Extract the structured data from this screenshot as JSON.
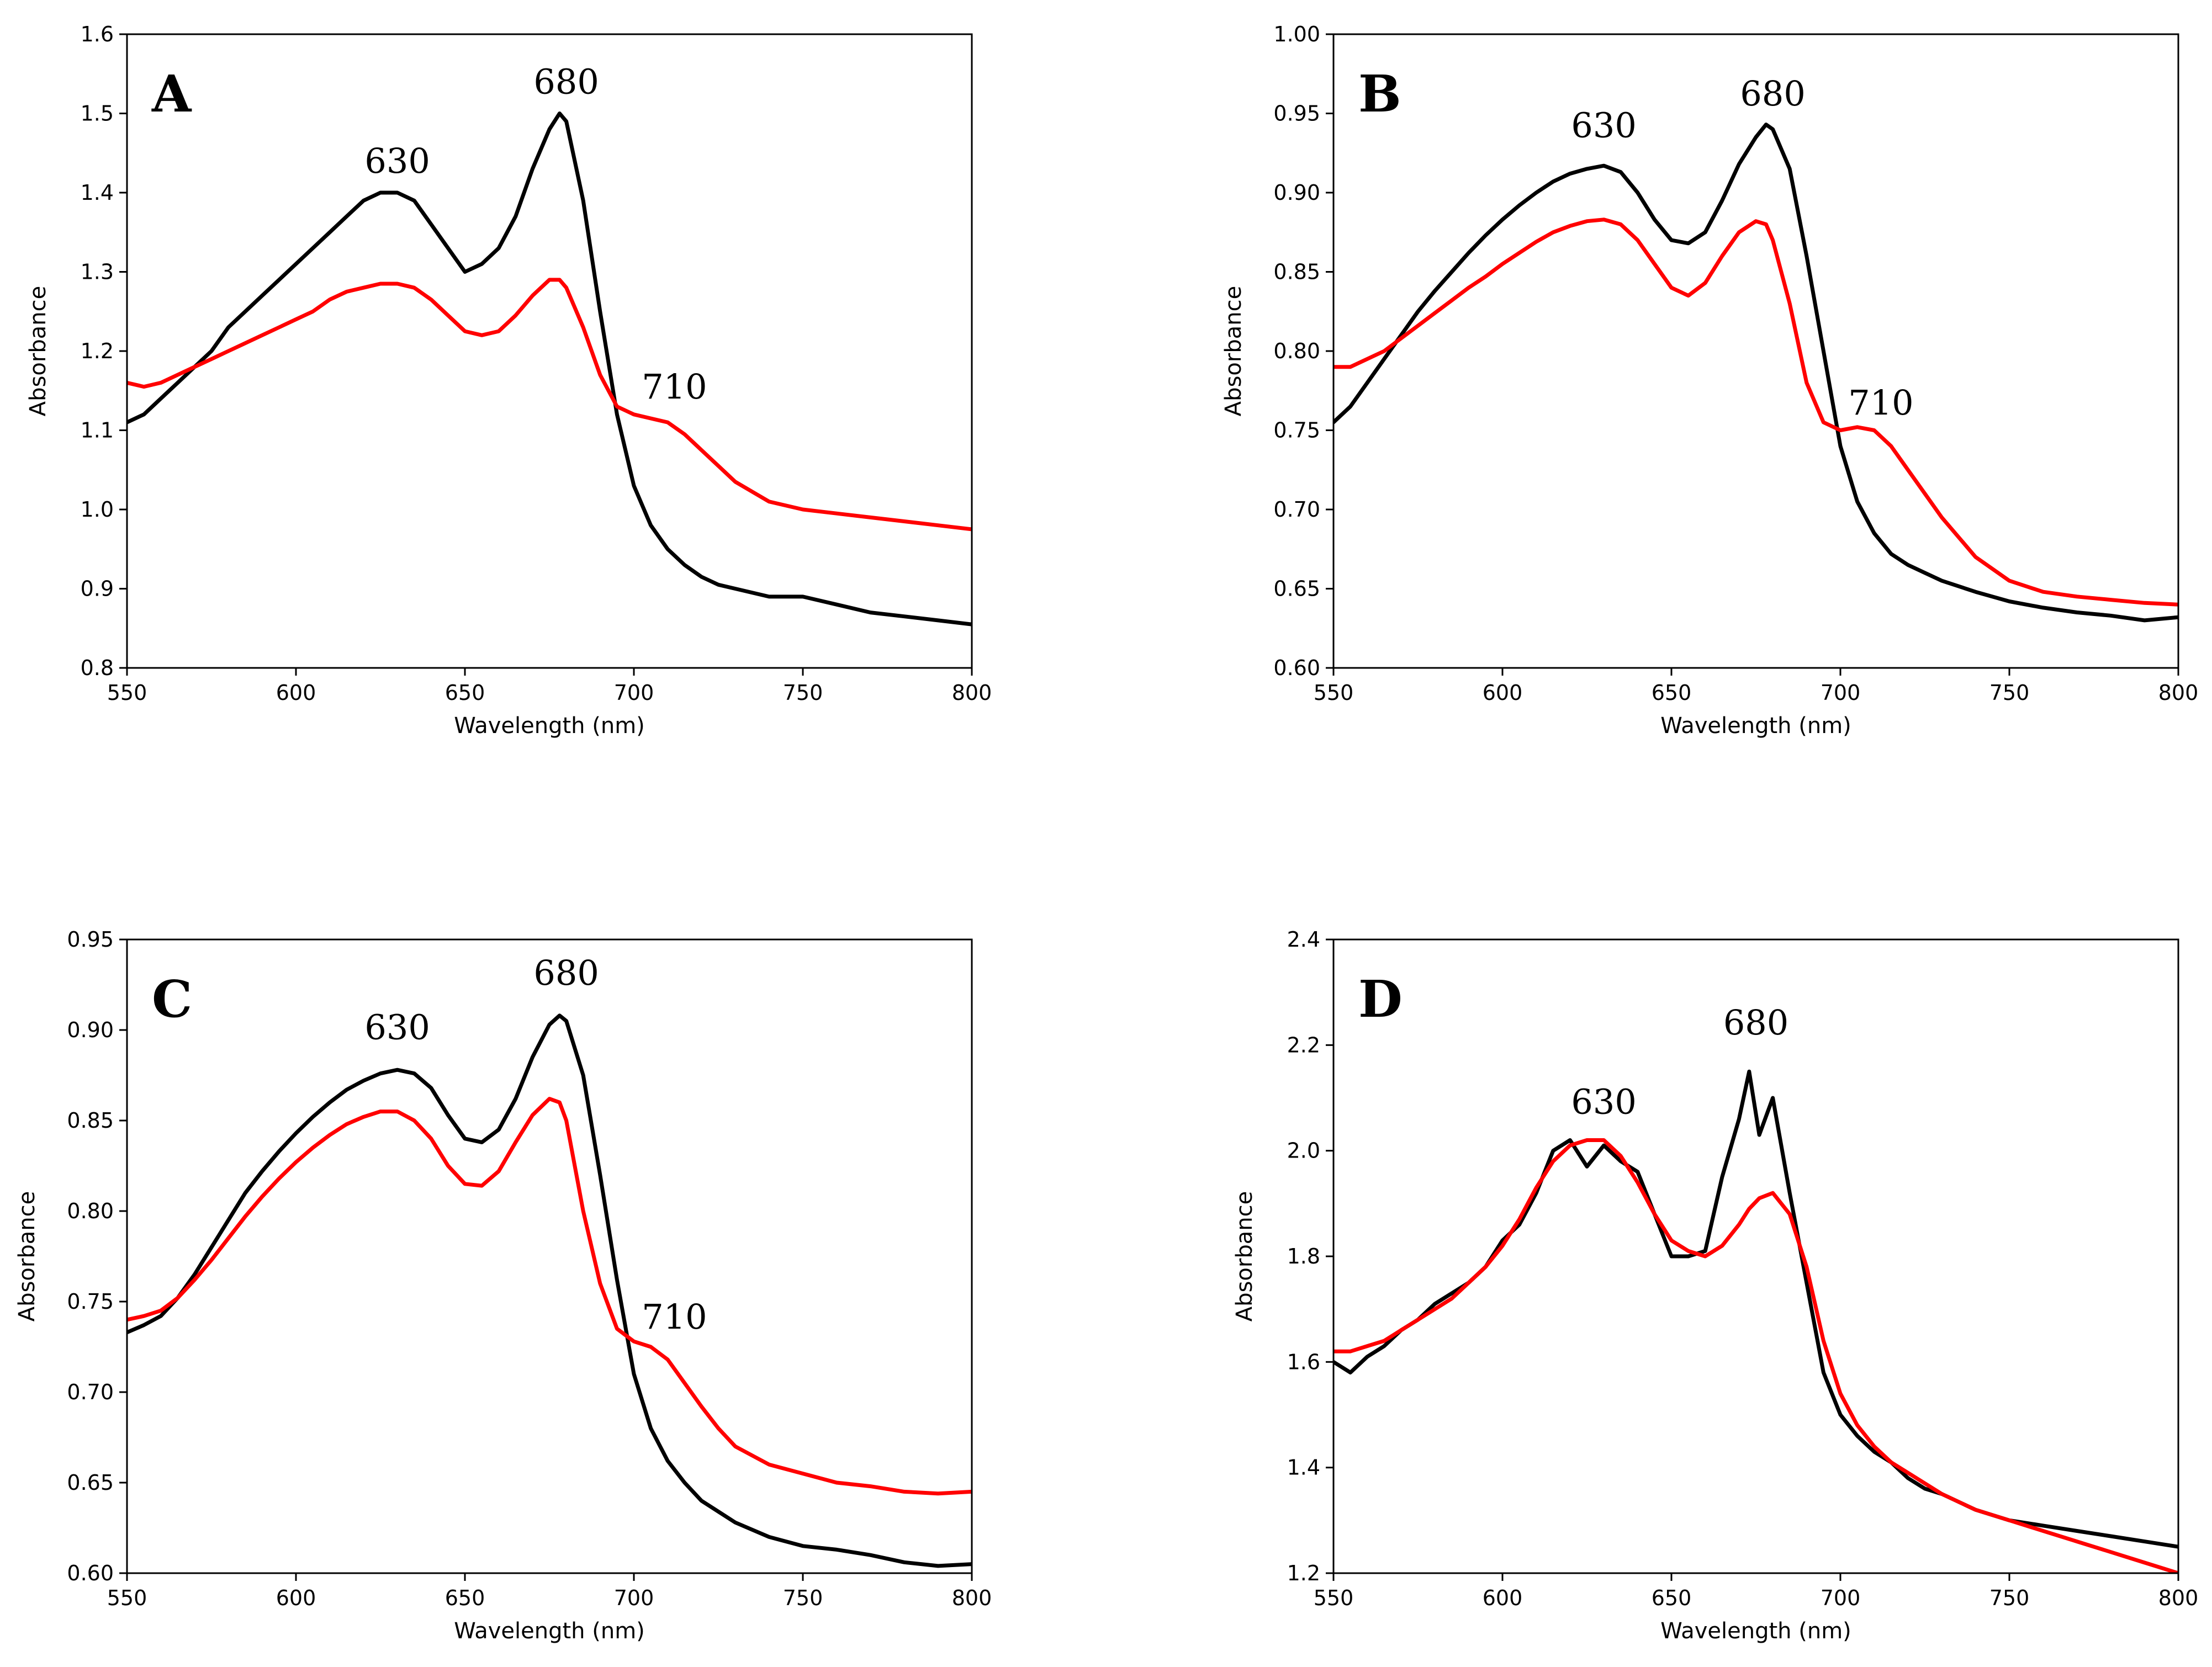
{
  "chart_data": [
    {
      "type": "line",
      "panel": "A",
      "xlabel": "Wavelength (nm)",
      "ylabel": "Absorbance",
      "xlim": [
        550,
        800
      ],
      "ylim": [
        0.8,
        1.6
      ],
      "xticks": [
        550,
        600,
        650,
        700,
        750,
        800
      ],
      "xtick_labels": [
        "550",
        "600",
        "650",
        "700",
        "750",
        "800"
      ],
      "yticks": [
        0.8,
        0.9,
        1.0,
        1.1,
        1.2,
        1.3,
        1.4,
        1.5,
        1.6
      ],
      "ytick_labels": [
        "0.8",
        "0.9",
        "1.0",
        "1.1",
        "1.2",
        "1.3",
        "1.4",
        "1.5",
        "1.6"
      ],
      "annotations": [
        {
          "text": "630",
          "x": 630,
          "y": 1.425
        },
        {
          "text": "680",
          "x": 680,
          "y": 1.525
        },
        {
          "text": "710",
          "x": 712,
          "y": 1.14
        }
      ],
      "series": [
        {
          "name": "black",
          "color": "#000000",
          "x": [
            550,
            555,
            560,
            565,
            570,
            575,
            580,
            585,
            590,
            595,
            600,
            605,
            610,
            615,
            620,
            625,
            630,
            635,
            640,
            645,
            650,
            655,
            660,
            665,
            670,
            675,
            678,
            680,
            685,
            690,
            695,
            700,
            705,
            710,
            715,
            720,
            725,
            730,
            740,
            750,
            760,
            770,
            780,
            790,
            800
          ],
          "y": [
            1.11,
            1.12,
            1.14,
            1.16,
            1.18,
            1.2,
            1.23,
            1.25,
            1.27,
            1.29,
            1.31,
            1.33,
            1.35,
            1.37,
            1.39,
            1.4,
            1.4,
            1.39,
            1.36,
            1.33,
            1.3,
            1.31,
            1.33,
            1.37,
            1.43,
            1.48,
            1.5,
            1.49,
            1.39,
            1.25,
            1.12,
            1.03,
            0.98,
            0.95,
            0.93,
            0.915,
            0.905,
            0.9,
            0.89,
            0.89,
            0.88,
            0.87,
            0.865,
            0.86,
            0.855
          ]
        },
        {
          "name": "red",
          "color": "#ff0000",
          "x": [
            550,
            555,
            560,
            565,
            570,
            575,
            580,
            585,
            590,
            595,
            600,
            605,
            610,
            615,
            620,
            625,
            630,
            635,
            640,
            645,
            650,
            655,
            660,
            665,
            670,
            675,
            678,
            680,
            685,
            690,
            695,
            700,
            705,
            710,
            715,
            720,
            725,
            730,
            740,
            750,
            760,
            770,
            780,
            790,
            800
          ],
          "y": [
            1.16,
            1.155,
            1.16,
            1.17,
            1.18,
            1.19,
            1.2,
            1.21,
            1.22,
            1.23,
            1.24,
            1.25,
            1.265,
            1.275,
            1.28,
            1.285,
            1.285,
            1.28,
            1.265,
            1.245,
            1.225,
            1.22,
            1.225,
            1.245,
            1.27,
            1.29,
            1.29,
            1.28,
            1.23,
            1.17,
            1.13,
            1.12,
            1.115,
            1.11,
            1.095,
            1.075,
            1.055,
            1.035,
            1.01,
            1.0,
            0.995,
            0.99,
            0.985,
            0.98,
            0.975
          ]
        }
      ]
    },
    {
      "type": "line",
      "panel": "B",
      "xlabel": "Wavelength (nm)",
      "ylabel": "Absorbance",
      "xlim": [
        550,
        800
      ],
      "ylim": [
        0.6,
        1.0
      ],
      "xticks": [
        550,
        600,
        650,
        700,
        750,
        800
      ],
      "xtick_labels": [
        "550",
        "600",
        "650",
        "700",
        "750",
        "800"
      ],
      "yticks": [
        0.6,
        0.65,
        0.7,
        0.75,
        0.8,
        0.85,
        0.9,
        0.95,
        1.0
      ],
      "ytick_labels": [
        "0.60",
        "0.65",
        "0.70",
        "0.75",
        "0.80",
        "0.85",
        "0.90",
        "0.95",
        "1.00"
      ],
      "annotations": [
        {
          "text": "630",
          "x": 630,
          "y": 0.935
        },
        {
          "text": "680",
          "x": 680,
          "y": 0.955
        },
        {
          "text": "710",
          "x": 712,
          "y": 0.76
        }
      ],
      "series": [
        {
          "name": "black",
          "color": "#000000",
          "x": [
            550,
            555,
            560,
            565,
            570,
            575,
            580,
            585,
            590,
            595,
            600,
            605,
            610,
            615,
            620,
            625,
            630,
            635,
            640,
            645,
            650,
            655,
            660,
            665,
            670,
            675,
            678,
            680,
            685,
            690,
            695,
            700,
            705,
            710,
            715,
            720,
            725,
            730,
            740,
            750,
            760,
            770,
            780,
            790,
            800
          ],
          "y": [
            0.755,
            0.765,
            0.78,
            0.795,
            0.81,
            0.825,
            0.838,
            0.85,
            0.862,
            0.873,
            0.883,
            0.892,
            0.9,
            0.907,
            0.912,
            0.915,
            0.917,
            0.913,
            0.9,
            0.883,
            0.87,
            0.868,
            0.875,
            0.895,
            0.918,
            0.935,
            0.943,
            0.94,
            0.915,
            0.86,
            0.8,
            0.74,
            0.705,
            0.685,
            0.672,
            0.665,
            0.66,
            0.655,
            0.648,
            0.642,
            0.638,
            0.635,
            0.633,
            0.63,
            0.632
          ]
        },
        {
          "name": "red",
          "color": "#ff0000",
          "x": [
            550,
            555,
            560,
            565,
            570,
            575,
            580,
            585,
            590,
            595,
            600,
            605,
            610,
            615,
            620,
            625,
            630,
            635,
            640,
            645,
            650,
            655,
            660,
            665,
            670,
            675,
            678,
            680,
            685,
            690,
            695,
            700,
            705,
            710,
            715,
            720,
            725,
            730,
            740,
            750,
            760,
            770,
            780,
            790,
            800
          ],
          "y": [
            0.79,
            0.79,
            0.795,
            0.8,
            0.808,
            0.816,
            0.824,
            0.832,
            0.84,
            0.847,
            0.855,
            0.862,
            0.869,
            0.875,
            0.879,
            0.882,
            0.883,
            0.88,
            0.87,
            0.855,
            0.84,
            0.835,
            0.843,
            0.86,
            0.875,
            0.882,
            0.88,
            0.87,
            0.83,
            0.78,
            0.755,
            0.75,
            0.752,
            0.75,
            0.74,
            0.725,
            0.71,
            0.695,
            0.67,
            0.655,
            0.648,
            0.645,
            0.643,
            0.641,
            0.64
          ]
        }
      ]
    },
    {
      "type": "line",
      "panel": "C",
      "xlabel": "Wavelength (nm)",
      "ylabel": "Absorbance",
      "xlim": [
        550,
        800
      ],
      "ylim": [
        0.6,
        0.95
      ],
      "xticks": [
        550,
        600,
        650,
        700,
        750,
        800
      ],
      "xtick_labels": [
        "550",
        "600",
        "650",
        "700",
        "750",
        "800"
      ],
      "yticks": [
        0.6,
        0.65,
        0.7,
        0.75,
        0.8,
        0.85,
        0.9,
        0.95
      ],
      "ytick_labels": [
        "0.60",
        "0.65",
        "0.70",
        "0.75",
        "0.80",
        "0.85",
        "0.90",
        "0.95"
      ],
      "annotations": [
        {
          "text": "630",
          "x": 630,
          "y": 0.895
        },
        {
          "text": "680",
          "x": 680,
          "y": 0.925
        },
        {
          "text": "710",
          "x": 712,
          "y": 0.735
        }
      ],
      "series": [
        {
          "name": "black",
          "color": "#000000",
          "x": [
            550,
            555,
            560,
            565,
            570,
            575,
            580,
            585,
            590,
            595,
            600,
            605,
            610,
            615,
            620,
            625,
            630,
            635,
            640,
            645,
            650,
            655,
            660,
            665,
            670,
            675,
            678,
            680,
            685,
            690,
            695,
            700,
            705,
            710,
            715,
            720,
            725,
            730,
            740,
            750,
            760,
            770,
            780,
            790,
            800
          ],
          "y": [
            0.733,
            0.737,
            0.742,
            0.752,
            0.765,
            0.78,
            0.795,
            0.81,
            0.822,
            0.833,
            0.843,
            0.852,
            0.86,
            0.867,
            0.872,
            0.876,
            0.878,
            0.876,
            0.868,
            0.853,
            0.84,
            0.838,
            0.845,
            0.862,
            0.885,
            0.903,
            0.908,
            0.905,
            0.875,
            0.82,
            0.762,
            0.71,
            0.68,
            0.662,
            0.65,
            0.64,
            0.634,
            0.628,
            0.62,
            0.615,
            0.613,
            0.61,
            0.606,
            0.604,
            0.605
          ]
        },
        {
          "name": "red",
          "color": "#ff0000",
          "x": [
            550,
            555,
            560,
            565,
            570,
            575,
            580,
            585,
            590,
            595,
            600,
            605,
            610,
            615,
            620,
            625,
            630,
            635,
            640,
            645,
            650,
            655,
            660,
            665,
            670,
            675,
            678,
            680,
            685,
            690,
            695,
            700,
            705,
            710,
            715,
            720,
            725,
            730,
            740,
            750,
            760,
            770,
            780,
            790,
            800
          ],
          "y": [
            0.74,
            0.742,
            0.745,
            0.752,
            0.762,
            0.773,
            0.785,
            0.797,
            0.808,
            0.818,
            0.827,
            0.835,
            0.842,
            0.848,
            0.852,
            0.855,
            0.855,
            0.85,
            0.84,
            0.825,
            0.815,
            0.814,
            0.822,
            0.838,
            0.853,
            0.862,
            0.86,
            0.85,
            0.8,
            0.76,
            0.735,
            0.728,
            0.725,
            0.718,
            0.705,
            0.692,
            0.68,
            0.67,
            0.66,
            0.655,
            0.65,
            0.648,
            0.645,
            0.644,
            0.645
          ]
        }
      ]
    },
    {
      "type": "line",
      "panel": "D",
      "xlabel": "Wavelength (nm)",
      "ylabel": "Absorbance",
      "xlim": [
        550,
        800
      ],
      "ylim": [
        1.2,
        2.4
      ],
      "xticks": [
        550,
        600,
        650,
        700,
        750,
        800
      ],
      "xtick_labels": [
        "550",
        "600",
        "650",
        "700",
        "750",
        "800"
      ],
      "yticks": [
        1.2,
        1.4,
        1.6,
        1.8,
        2.0,
        2.2,
        2.4
      ],
      "ytick_labels": [
        "1.2",
        "1.4",
        "1.6",
        "1.8",
        "2.0",
        "2.2",
        "2.4"
      ],
      "annotations": [
        {
          "text": "630",
          "x": 630,
          "y": 2.07
        },
        {
          "text": "680",
          "x": 675,
          "y": 2.22
        }
      ],
      "series": [
        {
          "name": "black",
          "color": "#000000",
          "x": [
            550,
            555,
            560,
            565,
            570,
            575,
            580,
            585,
            590,
            595,
            600,
            605,
            610,
            615,
            620,
            625,
            630,
            635,
            640,
            645,
            650,
            655,
            660,
            665,
            670,
            673,
            676,
            680,
            685,
            690,
            695,
            700,
            705,
            710,
            715,
            720,
            725,
            730,
            740,
            750,
            760,
            770,
            780,
            790,
            800
          ],
          "y": [
            1.6,
            1.58,
            1.61,
            1.63,
            1.66,
            1.68,
            1.71,
            1.73,
            1.75,
            1.78,
            1.83,
            1.86,
            1.92,
            2.0,
            2.02,
            1.97,
            2.01,
            1.98,
            1.96,
            1.88,
            1.8,
            1.8,
            1.81,
            1.95,
            2.06,
            2.15,
            2.03,
            2.1,
            1.92,
            1.75,
            1.58,
            1.5,
            1.46,
            1.43,
            1.41,
            1.38,
            1.36,
            1.35,
            1.32,
            1.3,
            1.29,
            1.28,
            1.27,
            1.26,
            1.25
          ]
        },
        {
          "name": "red",
          "color": "#ff0000",
          "x": [
            550,
            555,
            560,
            565,
            570,
            575,
            580,
            585,
            590,
            595,
            600,
            605,
            610,
            615,
            620,
            625,
            630,
            635,
            640,
            645,
            650,
            655,
            660,
            665,
            670,
            673,
            676,
            680,
            685,
            690,
            695,
            700,
            705,
            710,
            715,
            720,
            725,
            730,
            740,
            750,
            760,
            770,
            780,
            790,
            800
          ],
          "y": [
            1.62,
            1.62,
            1.63,
            1.64,
            1.66,
            1.68,
            1.7,
            1.72,
            1.75,
            1.78,
            1.82,
            1.87,
            1.93,
            1.98,
            2.01,
            2.02,
            2.02,
            1.99,
            1.94,
            1.88,
            1.83,
            1.81,
            1.8,
            1.82,
            1.86,
            1.89,
            1.91,
            1.92,
            1.88,
            1.78,
            1.64,
            1.54,
            1.48,
            1.44,
            1.41,
            1.39,
            1.37,
            1.35,
            1.32,
            1.3,
            1.28,
            1.26,
            1.24,
            1.22,
            1.2
          ]
        }
      ]
    }
  ]
}
